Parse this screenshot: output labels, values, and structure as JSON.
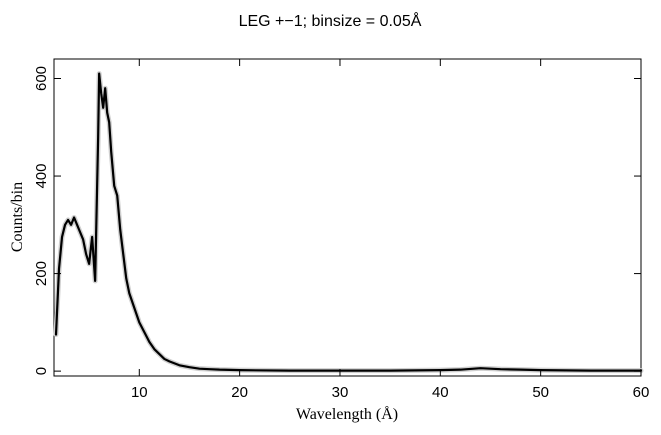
{
  "chart_data": {
    "type": "line",
    "title": "LEG +−1; binsize = 0.05Å",
    "xlabel": "Wavelength (Å)",
    "ylabel": "Counts/bin",
    "xlim": [
      1.5,
      60
    ],
    "ylim": [
      -10,
      640
    ],
    "x_ticks": [
      10,
      20,
      30,
      40,
      50,
      60
    ],
    "y_ticks": [
      0,
      200,
      400,
      600
    ],
    "x_tick_labels": [
      "10",
      "20",
      "30",
      "40",
      "50",
      "60"
    ],
    "y_tick_labels": [
      "0",
      "200",
      "400",
      "600"
    ],
    "grid": false,
    "legend": "none",
    "series": [
      {
        "x": [
          1.7,
          2.0,
          2.3,
          2.6,
          2.9,
          3.2,
          3.5,
          3.8,
          4.1,
          4.4,
          4.7,
          5.0,
          5.3,
          5.6,
          5.9,
          6.0,
          6.2,
          6.4,
          6.6,
          6.8,
          7.0,
          7.2,
          7.5,
          7.8,
          8.1,
          8.4,
          8.7,
          9.0,
          9.5,
          10.0,
          10.5,
          11.0,
          11.5,
          12.0,
          12.5,
          13.0,
          14.0,
          15.0,
          16.0,
          17.0,
          18.0,
          20.0,
          25.0,
          30.0,
          35.0,
          40.0,
          42.0,
          44.0,
          45.0,
          46.0,
          48.0,
          50.0,
          55.0,
          60.0
        ],
        "values": [
          75,
          210,
          275,
          300,
          310,
          300,
          315,
          300,
          285,
          270,
          240,
          220,
          275,
          185,
          480,
          610,
          570,
          540,
          580,
          530,
          510,
          450,
          380,
          360,
          290,
          240,
          190,
          160,
          130,
          100,
          80,
          60,
          45,
          35,
          25,
          20,
          12,
          8,
          5,
          4,
          3,
          2,
          1,
          1,
          1,
          2,
          3,
          6,
          5,
          4,
          3,
          2,
          1,
          1
        ]
      }
    ]
  }
}
